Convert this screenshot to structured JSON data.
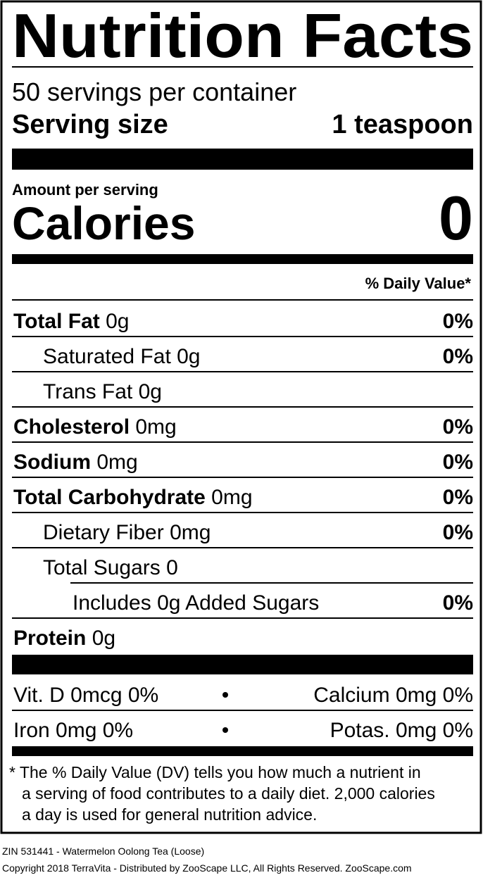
{
  "header": {
    "title": "Nutrition Facts",
    "servings": "50 servings per container",
    "serving_size_label": "Serving size",
    "serving_size_value": "1 teaspoon"
  },
  "calories": {
    "amount_label": "Amount per serving",
    "label": "Calories",
    "value": "0"
  },
  "daily_value_header": "% Daily Value*",
  "nutrients": [
    {
      "name": "Total Fat",
      "amount": "0g",
      "dv": "0%"
    },
    {
      "name": "Saturated Fat",
      "amount": "0g",
      "dv": "0%"
    },
    {
      "name": "Trans Fat",
      "amount": "0g"
    },
    {
      "name": "Cholesterol",
      "amount": "0mg",
      "dv": "0%"
    },
    {
      "name": "Sodium",
      "amount": "0mg",
      "dv": "0%"
    },
    {
      "name": "Total Carbohydrate",
      "amount": "0mg",
      "dv": "0%"
    },
    {
      "name": "Dietary Fiber",
      "amount": "0mg",
      "dv": "0%"
    },
    {
      "name": "Total Sugars",
      "amount": "0"
    },
    {
      "name": "Includes 0g Added Sugars",
      "dv": "0%"
    },
    {
      "name": "Protein",
      "amount": "0g"
    }
  ],
  "vitamins": [
    [
      "Vit. D 0mcg 0%",
      "Calcium 0mg 0%"
    ],
    [
      "Iron 0mg 0%",
      "Potas. 0mg 0%"
    ]
  ],
  "footnote": [
    "* The % Daily Value (DV) tells you how much a nutrient in",
    "a serving of food contributes to a daily diet. 2,000 calories",
    "a day is used for general nutrition advice."
  ],
  "footer": [
    "ZIN 531441 - Watermelon Oolong Tea (Loose)",
    "Copyright 2018 TerraVita - Distributed by ZooScape LLC, All Rights Reserved. ZooScape.com"
  ]
}
